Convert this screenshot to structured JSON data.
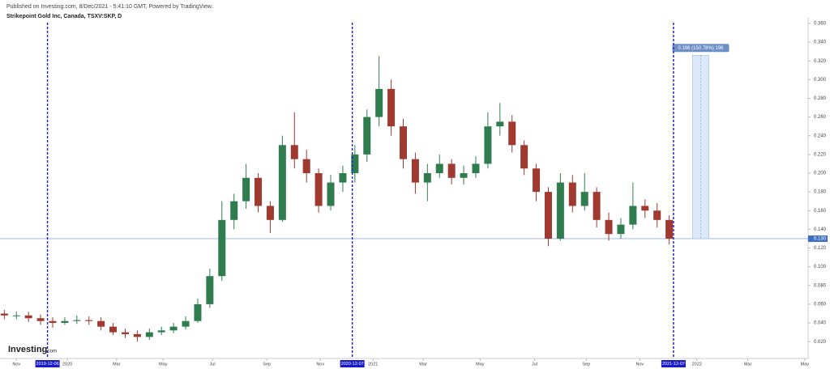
{
  "chart_data": {
    "type": "candlestick",
    "published": "Published on Investing.com, 8/Dec/2021 - 5:41:10 GMT, Powered by TradingView.",
    "title": "Strikepoint Gold Inc, Canada, TSXV:SKP, D",
    "logo": "Investing",
    "logo_suffix": ".com",
    "x": [
      -14,
      0,
      14,
      28,
      42,
      56,
      70,
      84,
      98,
      112,
      126,
      140,
      154,
      168,
      182,
      196,
      210,
      224,
      238,
      252,
      266,
      280,
      294,
      308,
      322,
      336,
      350,
      364,
      378,
      392,
      406,
      420,
      434,
      448,
      462,
      476,
      490,
      504,
      518,
      532,
      546,
      560,
      574,
      588,
      602,
      616,
      630,
      644,
      658,
      672,
      686,
      700,
      714,
      728,
      742,
      756
    ],
    "open": [
      0.05,
      0.048,
      0.048,
      0.045,
      0.042,
      0.04,
      0.042,
      0.043,
      0.042,
      0.036,
      0.03,
      0.028,
      0.025,
      0.03,
      0.032,
      0.036,
      0.042,
      0.06,
      0.09,
      0.15,
      0.17,
      0.195,
      0.165,
      0.15,
      0.23,
      0.215,
      0.2,
      0.165,
      0.19,
      0.2,
      0.22,
      0.26,
      0.29,
      0.25,
      0.215,
      0.19,
      0.2,
      0.21,
      0.195,
      0.2,
      0.21,
      0.25,
      0.255,
      0.23,
      0.205,
      0.18,
      0.13,
      0.19,
      0.165,
      0.18,
      0.15,
      0.135,
      0.145,
      0.165,
      0.16,
      0.15
    ],
    "high": [
      0.054,
      0.052,
      0.052,
      0.049,
      0.046,
      0.046,
      0.048,
      0.047,
      0.046,
      0.04,
      0.034,
      0.032,
      0.034,
      0.036,
      0.04,
      0.047,
      0.066,
      0.098,
      0.17,
      0.178,
      0.21,
      0.2,
      0.17,
      0.24,
      0.265,
      0.225,
      0.205,
      0.198,
      0.208,
      0.23,
      0.268,
      0.325,
      0.3,
      0.258,
      0.222,
      0.21,
      0.22,
      0.215,
      0.208,
      0.218,
      0.265,
      0.275,
      0.262,
      0.235,
      0.21,
      0.185,
      0.2,
      0.198,
      0.2,
      0.185,
      0.158,
      0.152,
      0.19,
      0.172,
      0.168,
      0.155
    ],
    "low": [
      0.044,
      0.044,
      0.041,
      0.038,
      0.035,
      0.038,
      0.039,
      0.038,
      0.032,
      0.027,
      0.024,
      0.02,
      0.022,
      0.027,
      0.029,
      0.033,
      0.04,
      0.056,
      0.085,
      0.14,
      0.162,
      0.158,
      0.136,
      0.148,
      0.205,
      0.19,
      0.158,
      0.16,
      0.18,
      0.19,
      0.212,
      0.25,
      0.24,
      0.205,
      0.178,
      0.17,
      0.195,
      0.188,
      0.188,
      0.195,
      0.205,
      0.24,
      0.222,
      0.198,
      0.17,
      0.122,
      0.128,
      0.158,
      0.16,
      0.142,
      0.128,
      0.13,
      0.14,
      0.152,
      0.142,
      0.124
    ],
    "close": [
      0.048,
      0.048,
      0.045,
      0.042,
      0.04,
      0.042,
      0.043,
      0.042,
      0.036,
      0.03,
      0.028,
      0.025,
      0.03,
      0.032,
      0.036,
      0.042,
      0.06,
      0.09,
      0.15,
      0.17,
      0.195,
      0.165,
      0.15,
      0.23,
      0.215,
      0.2,
      0.165,
      0.19,
      0.2,
      0.22,
      0.26,
      0.29,
      0.25,
      0.215,
      0.19,
      0.2,
      0.21,
      0.195,
      0.2,
      0.21,
      0.25,
      0.255,
      0.23,
      0.205,
      0.18,
      0.13,
      0.19,
      0.165,
      0.18,
      0.15,
      0.135,
      0.145,
      0.165,
      0.16,
      0.15,
      0.13
    ],
    "up_color": "#2f7d4f",
    "down_color": "#a0392f",
    "xlim": [
      -19,
      915
    ],
    "xticks": [
      {
        "value": 0,
        "label": "Nov"
      },
      {
        "value": 59,
        "label": "2020"
      },
      {
        "value": 116,
        "label": "Mar"
      },
      {
        "value": 170,
        "label": "May"
      },
      {
        "value": 227,
        "label": "Jul"
      },
      {
        "value": 290,
        "label": "Sep"
      },
      {
        "value": 352,
        "label": "Nov"
      },
      {
        "value": 413,
        "label": "2021"
      },
      {
        "value": 471,
        "label": "Mar"
      },
      {
        "value": 537,
        "label": "May"
      },
      {
        "value": 600,
        "label": "Jul"
      },
      {
        "value": 660,
        "label": "Sep"
      },
      {
        "value": 722,
        "label": "Nov"
      },
      {
        "value": 788,
        "label": "2022"
      },
      {
        "value": 847,
        "label": "Mar"
      },
      {
        "value": 913,
        "label": "May"
      }
    ],
    "ylim": [
      0.002,
      0.366
    ],
    "yticks": [
      {
        "value": 0.02,
        "label": "0.020"
      },
      {
        "value": 0.04,
        "label": "0.040"
      },
      {
        "value": 0.06,
        "label": "0.060"
      },
      {
        "value": 0.08,
        "label": "0.080"
      },
      {
        "value": 0.1,
        "label": "0.100"
      },
      {
        "value": 0.12,
        "label": "0.120"
      },
      {
        "value": 0.14,
        "label": "0.140"
      },
      {
        "value": 0.16,
        "label": "0.160"
      },
      {
        "value": 0.18,
        "label": "0.180"
      },
      {
        "value": 0.2,
        "label": "0.200"
      },
      {
        "value": 0.22,
        "label": "0.220"
      },
      {
        "value": 0.24,
        "label": "0.240"
      },
      {
        "value": 0.26,
        "label": "0.260"
      },
      {
        "value": 0.28,
        "label": "0.280"
      },
      {
        "value": 0.3,
        "label": "0.300"
      },
      {
        "value": 0.32,
        "label": "0.320"
      },
      {
        "value": 0.34,
        "label": "0.340"
      },
      {
        "value": 0.36,
        "label": "0.360"
      }
    ],
    "markers": [
      {
        "x": 36,
        "label": "2019-12-06"
      },
      {
        "x": 389,
        "label": "2020-12-07"
      },
      {
        "x": 761,
        "label": "2021-12-07"
      }
    ],
    "marker_color": "#1a1acc",
    "last_price": {
      "value": 0.13,
      "label": "0.130"
    },
    "measure": {
      "label": "0.196 (150.78%) 196",
      "from": 0.13,
      "to": 0.326,
      "x": [
        783,
        802
      ]
    }
  }
}
